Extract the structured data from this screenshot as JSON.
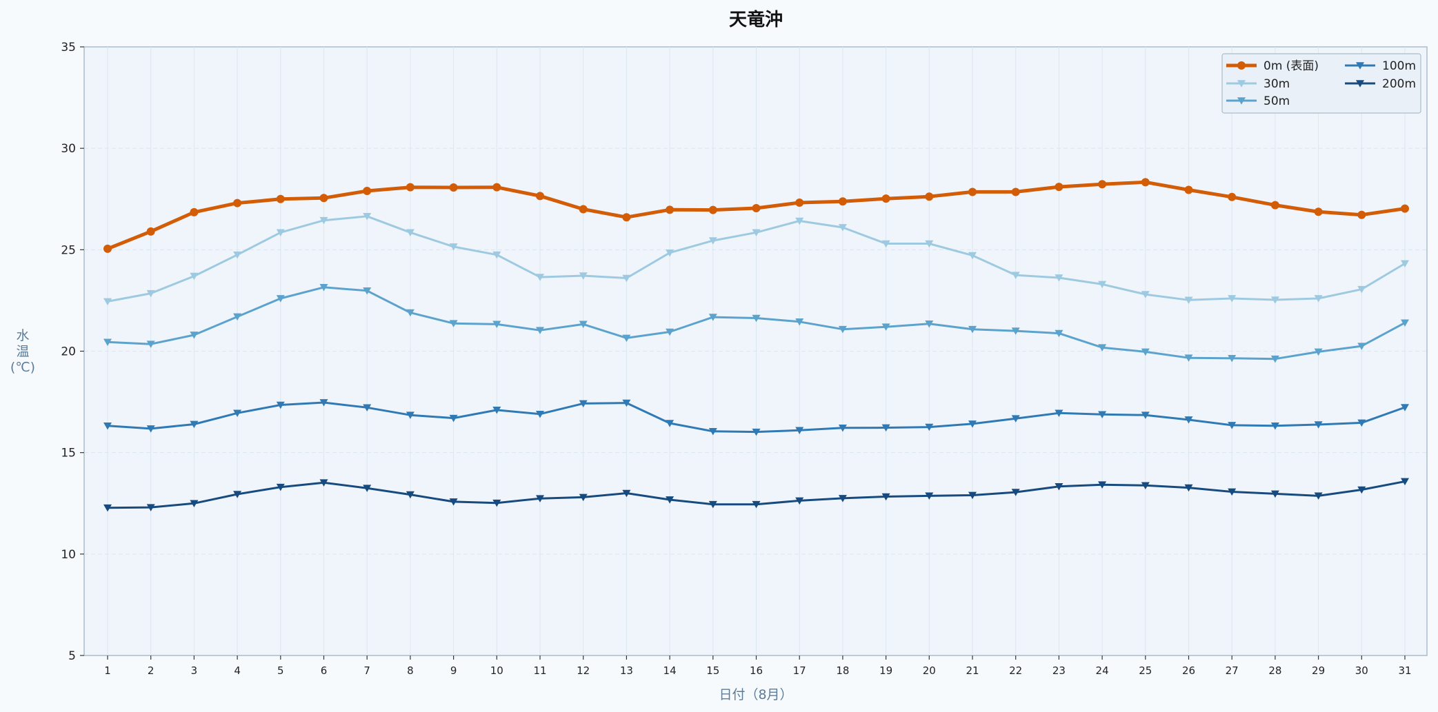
{
  "chart_data": {
    "type": "line",
    "title": "天竜沖",
    "xlabel": "日付（8月）",
    "ylabel_chars": [
      "水",
      "温",
      "(℃)"
    ],
    "x": [
      1,
      2,
      3,
      4,
      5,
      6,
      7,
      8,
      9,
      10,
      11,
      12,
      13,
      14,
      15,
      16,
      17,
      18,
      19,
      20,
      21,
      22,
      23,
      24,
      25,
      26,
      27,
      28,
      29,
      30,
      31
    ],
    "ylim": [
      5,
      35
    ],
    "yticks": [
      5,
      10,
      15,
      20,
      25,
      30,
      35
    ],
    "grid": true,
    "legend_position": "top-right",
    "series": [
      {
        "name": "0m (表面)",
        "color": "#d35c06",
        "marker": "circle",
        "values": [
          25.05,
          25.9,
          26.85,
          27.3,
          27.5,
          27.55,
          27.9,
          28.08,
          28.07,
          28.08,
          27.65,
          27.0,
          26.6,
          26.97,
          26.96,
          27.05,
          27.32,
          27.38,
          27.52,
          27.62,
          27.85,
          27.85,
          28.1,
          28.23,
          28.33,
          27.95,
          27.6,
          27.2,
          26.87,
          26.72,
          27.03
        ]
      },
      {
        "name": "30m",
        "color": "#9ecae1",
        "marker": "triangle-down",
        "values": [
          22.45,
          22.85,
          23.7,
          24.75,
          25.85,
          26.45,
          26.65,
          25.85,
          25.15,
          24.75,
          23.65,
          23.72,
          23.6,
          24.85,
          25.45,
          25.85,
          26.42,
          26.1,
          25.3,
          25.3,
          24.72,
          23.75,
          23.62,
          23.3,
          22.8,
          22.52,
          22.6,
          22.53,
          22.6,
          23.05,
          24.32
        ]
      },
      {
        "name": "50m",
        "color": "#5ba3cc",
        "marker": "triangle-down",
        "values": [
          20.45,
          20.35,
          20.8,
          21.7,
          22.6,
          23.15,
          22.98,
          21.9,
          21.37,
          21.33,
          21.03,
          21.33,
          20.65,
          20.95,
          21.68,
          21.63,
          21.45,
          21.08,
          21.2,
          21.35,
          21.08,
          21.0,
          20.88,
          20.18,
          19.97,
          19.67,
          19.65,
          19.62,
          19.97,
          20.25,
          21.4
        ]
      },
      {
        "name": "100m",
        "color": "#2f79b5",
        "marker": "triangle-down",
        "values": [
          16.32,
          16.18,
          16.4,
          16.95,
          17.35,
          17.47,
          17.22,
          16.85,
          16.7,
          17.1,
          16.9,
          17.42,
          17.45,
          16.45,
          16.05,
          16.02,
          16.1,
          16.22,
          16.23,
          16.26,
          16.42,
          16.68,
          16.95,
          16.88,
          16.85,
          16.62,
          16.35,
          16.32,
          16.38,
          16.47,
          17.23
        ]
      },
      {
        "name": "200m",
        "color": "#174a7e",
        "marker": "triangle-down",
        "values": [
          12.28,
          12.3,
          12.5,
          12.95,
          13.3,
          13.52,
          13.25,
          12.93,
          12.58,
          12.52,
          12.74,
          12.8,
          13.0,
          12.68,
          12.45,
          12.45,
          12.63,
          12.75,
          12.83,
          12.87,
          12.9,
          13.05,
          13.33,
          13.42,
          13.38,
          13.27,
          13.07,
          12.97,
          12.87,
          13.17,
          13.58
        ]
      }
    ]
  }
}
